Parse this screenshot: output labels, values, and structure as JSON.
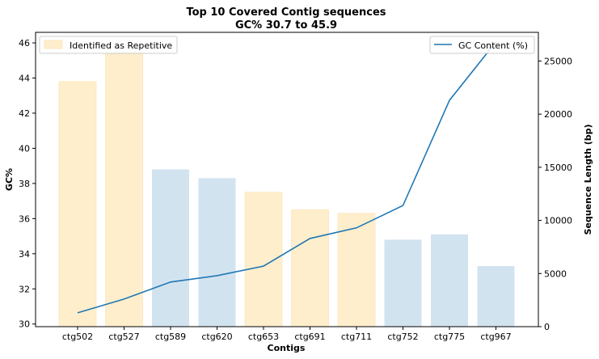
{
  "chart_data": {
    "type": "bar",
    "title": "Top 10 Covered Contig sequences",
    "subtitle": "GC% 30.7 to 45.9",
    "xlabel": "Contigs",
    "ylabel_left": "GC%",
    "ylabel_right": "Sequence Length (bp)",
    "categories": [
      "ctg502",
      "ctg527",
      "ctg589",
      "ctg620",
      "ctg653",
      "ctg691",
      "ctg711",
      "ctg752",
      "ctg775",
      "ctg967"
    ],
    "bars": {
      "axis": "left",
      "values": [
        43.8,
        45.5,
        38.8,
        38.3,
        37.5,
        36.5,
        36.3,
        34.8,
        35.1,
        33.3
      ],
      "repetitive": [
        true,
        true,
        false,
        false,
        true,
        true,
        true,
        false,
        false,
        false
      ],
      "color_repetitive": "#ffeecc",
      "color_normal": "#d2e3f0"
    },
    "series": [
      {
        "name": "GC Content (%)",
        "axis": "right",
        "values": [
          1300,
          2600,
          4200,
          4800,
          5700,
          8300,
          9300,
          11400,
          21300,
          26800
        ],
        "color": "#1f77b4"
      }
    ],
    "ylim_left": [
      29.85,
      46.6
    ],
    "ylim_right": [
      0,
      27700
    ],
    "yticks_left": [
      "30",
      "32",
      "34",
      "36",
      "38",
      "40",
      "42",
      "44",
      "46"
    ],
    "yticks_right": [
      "0",
      "5000",
      "10000",
      "15000",
      "20000",
      "25000"
    ],
    "legend_left": {
      "label": "Identified as Repetitive",
      "placement": "upper-left"
    },
    "legend_right": {
      "label": "GC Content (%)",
      "placement": "upper-right"
    },
    "grid": false
  }
}
